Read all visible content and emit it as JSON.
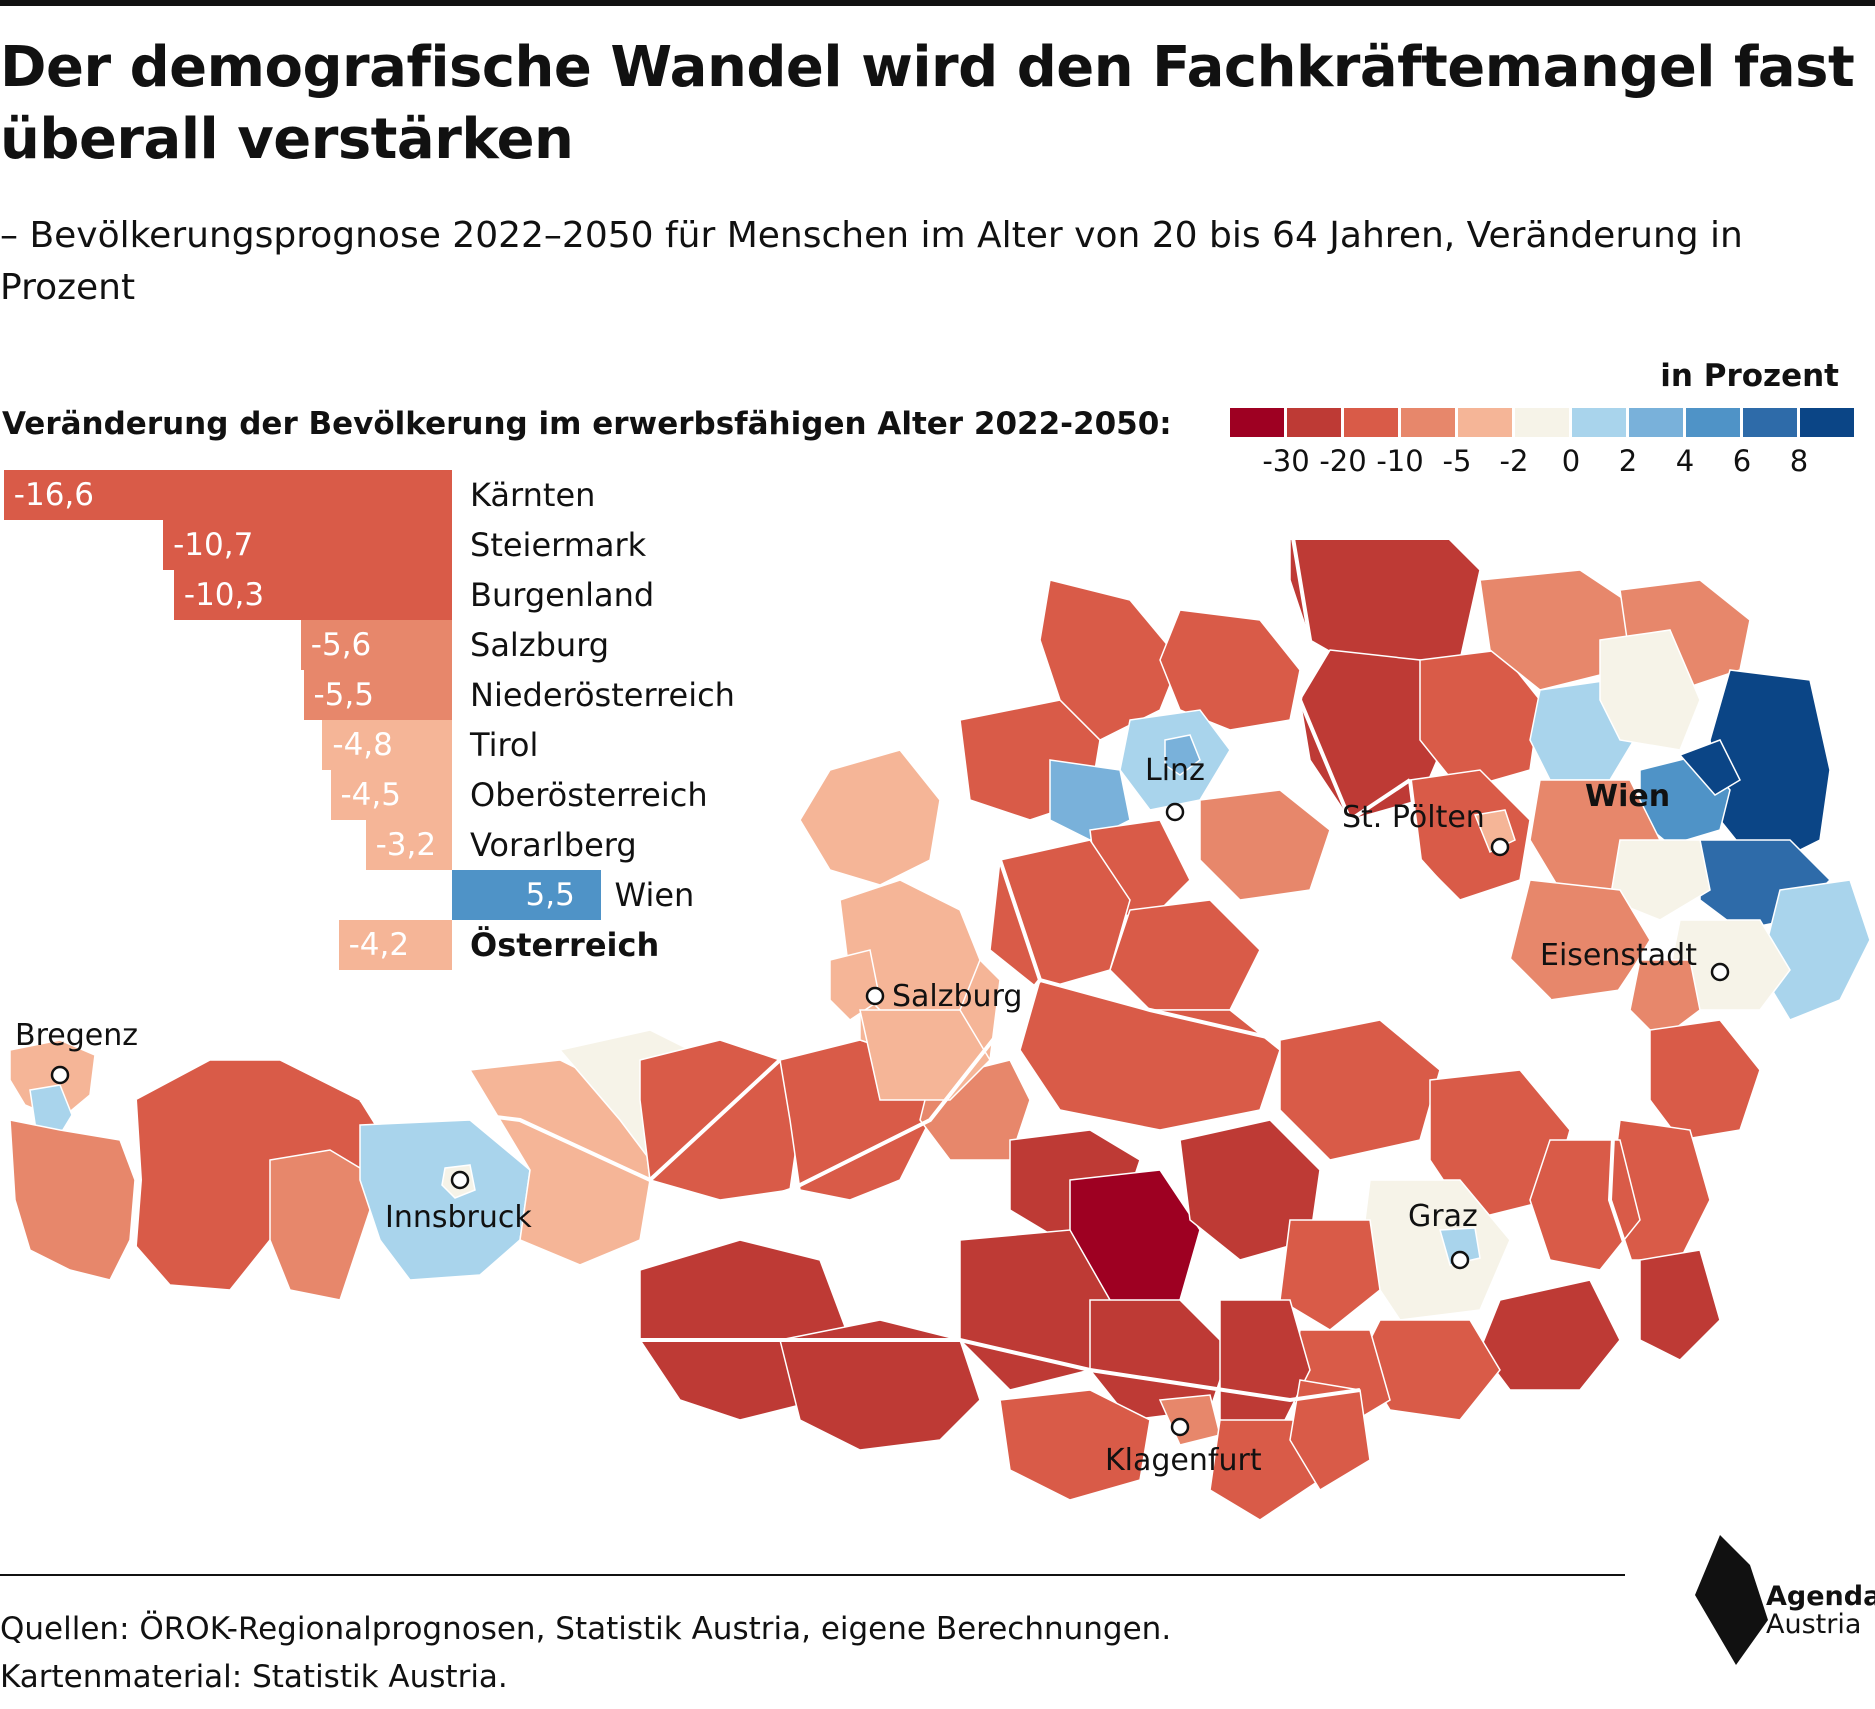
{
  "header": {
    "title": "Der demografische Wandel wird den Fachkräftemangel fast überall verstärken",
    "subtitle": "– Bevölkerungsprognose 2022–2050 für Menschen im Alter von 20 bis 64 Jahren, Veränderung in Prozent"
  },
  "legend": {
    "unit": "in Prozent",
    "title": "Veränderung der Bevölkerung im erwerbsfähigen Alter 2022-2050:",
    "bins": [
      {
        "color": "#9e0022"
      },
      {
        "color": "#be3a35"
      },
      {
        "color": "#d95b48"
      },
      {
        "color": "#e7876b"
      },
      {
        "color": "#f5b597"
      },
      {
        "color": "#f6f3e8"
      },
      {
        "color": "#a9d4ec"
      },
      {
        "color": "#79b1da"
      },
      {
        "color": "#4f93c7"
      },
      {
        "color": "#2e6ba9"
      },
      {
        "color": "#0b4586"
      }
    ],
    "ticks": [
      "-30",
      "-20",
      "-10",
      "-5",
      "-2",
      "0",
      "2",
      "4",
      "6",
      "8"
    ]
  },
  "chart_data": {
    "type": "bar",
    "orientation": "horizontal",
    "categories": [
      "Kärnten",
      "Steiermark",
      "Burgenland",
      "Salzburg",
      "Niederösterreich",
      "Tirol",
      "Oberösterreich",
      "Vorarlberg",
      "Wien",
      "Österreich"
    ],
    "values": [
      -16.6,
      -10.7,
      -10.3,
      -5.6,
      -5.5,
      -4.8,
      -4.5,
      -3.2,
      5.5,
      -4.2
    ],
    "value_labels": [
      "-16,6",
      "-10,7",
      "-10,3",
      "-5,6",
      "-5,5",
      "-4,8",
      "-4,5",
      "-3,2",
      "5,5",
      "-4,2"
    ],
    "colors": [
      "#d95b48",
      "#d95b48",
      "#d95b48",
      "#e7876b",
      "#e7876b",
      "#f5b597",
      "#f5b597",
      "#f5b597",
      "#4f93c7",
      "#f5b597"
    ]
  },
  "map": {
    "cities": [
      "Linz",
      "St. Pölten",
      "Wien",
      "Eisenstadt",
      "Salzburg",
      "Bregenz",
      "Innsbruck",
      "Graz",
      "Klagenfurt"
    ]
  },
  "footer": {
    "source_line1": "Quellen: ÖROK-Regionalprognosen, Statistik Austria, eigene Berechnungen.",
    "source_line2": "Kartenmaterial: Statistik Austria.",
    "logo_line1": "Agenda",
    "logo_line2": "Austria"
  }
}
